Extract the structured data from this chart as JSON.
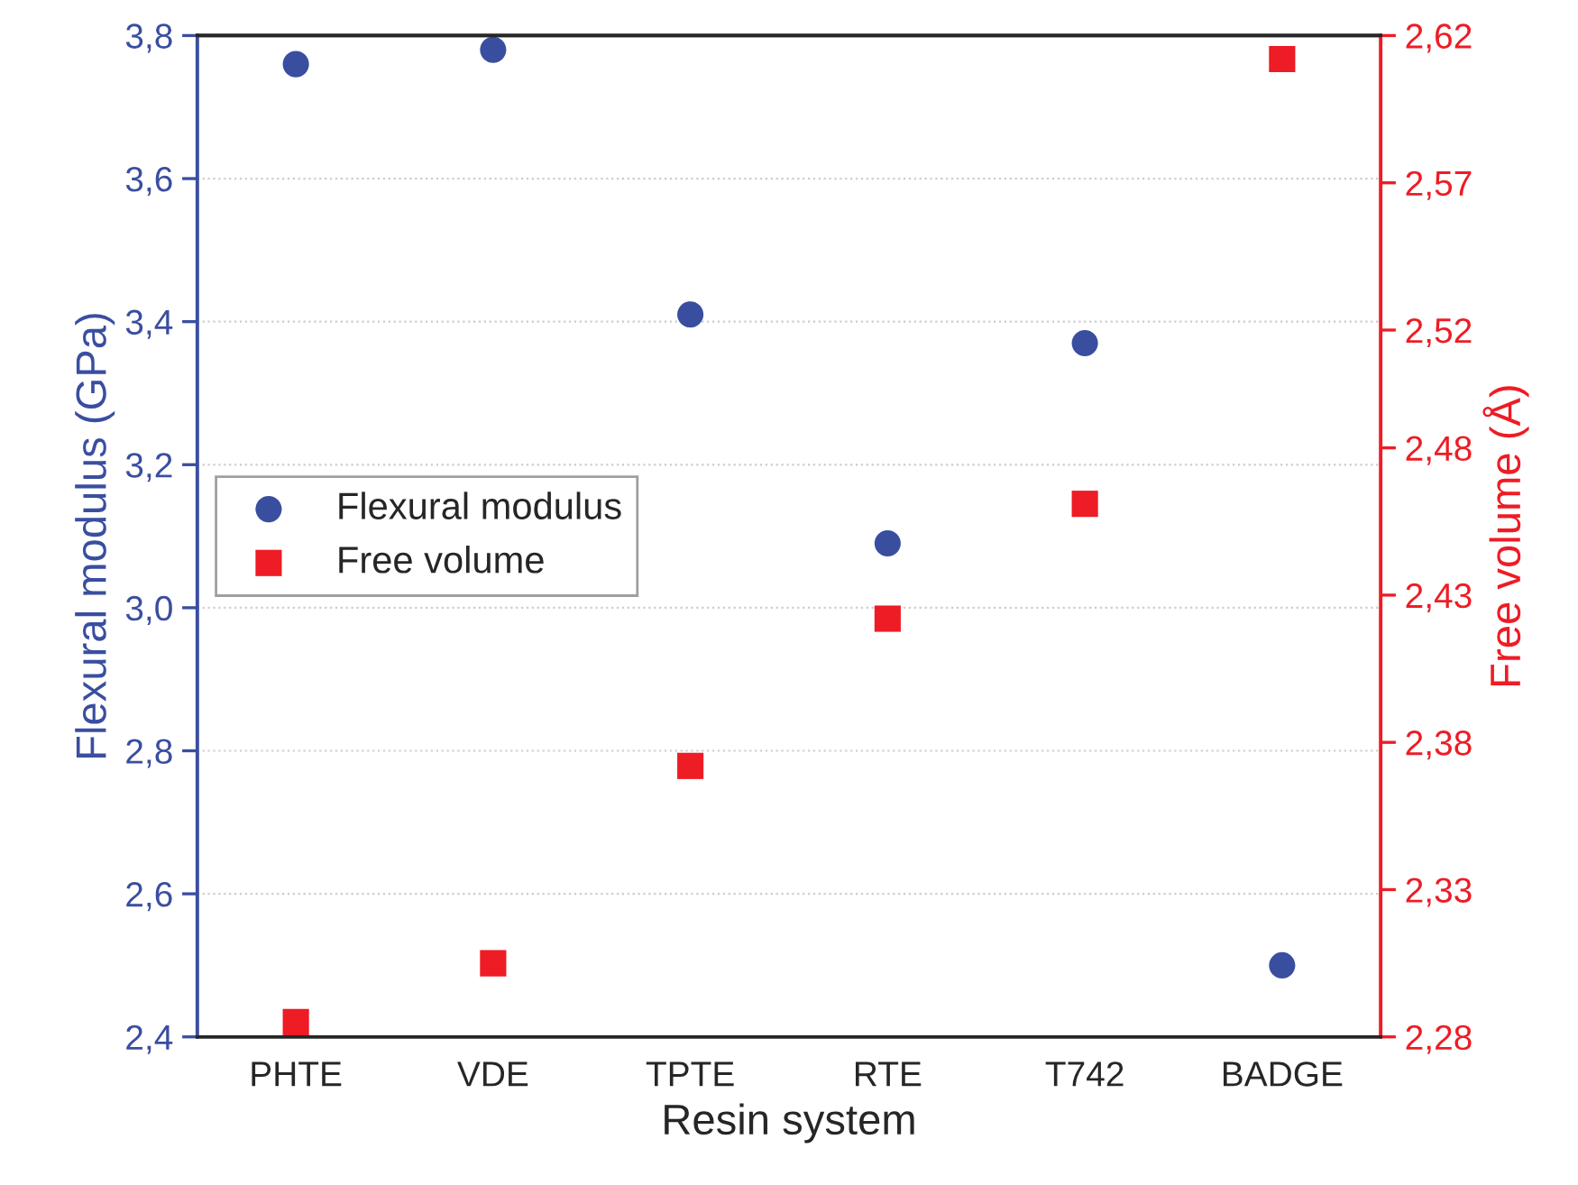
{
  "chart_data": {
    "type": "scatter",
    "xlabel": "Resin system",
    "ylabel": "Flexural modulus (GPa)",
    "y2label": "Free volume (Å)",
    "categories": [
      "PHTE",
      "VDE",
      "TPTE",
      "RTE",
      "T742",
      "BADGE"
    ],
    "series": [
      {
        "name": "Flexural modulus",
        "color": "#3a4ea0",
        "marker": "circle",
        "values": [
          3.76,
          3.78,
          3.41,
          3.09,
          3.37,
          2.5
        ]
      },
      {
        "name": "Free volume",
        "color": "#ee1c25",
        "marker": "square",
        "axis": "y2",
        "values": [
          2.285,
          2.305,
          2.372,
          2.422,
          2.461,
          2.612
        ]
      }
    ],
    "ylim": [
      2.4,
      3.8
    ],
    "yticks": [
      {
        "value": 2.4,
        "label": "2,4"
      },
      {
        "value": 2.6,
        "label": "2,6"
      },
      {
        "value": 2.8,
        "label": "2,8"
      },
      {
        "value": 3.0,
        "label": "3,0"
      },
      {
        "value": 3.2,
        "label": "3,2"
      },
      {
        "value": 3.4,
        "label": "3,4"
      },
      {
        "value": 3.6,
        "label": "3,6"
      },
      {
        "value": 3.8,
        "label": "3,8"
      }
    ],
    "y2lim": [
      2.28,
      2.62
    ],
    "y2ticks": [
      {
        "value": 2.28,
        "label": "2,28"
      },
      {
        "value": 2.33,
        "label": "2,33"
      },
      {
        "value": 2.38,
        "label": "2,38"
      },
      {
        "value": 2.43,
        "label": "2,43"
      },
      {
        "value": 2.48,
        "label": "2,48"
      },
      {
        "value": 2.52,
        "label": "2,52"
      },
      {
        "value": 2.57,
        "label": "2,57"
      },
      {
        "value": 2.62,
        "label": "2,62"
      }
    ],
    "grid": "y",
    "legend": "center left"
  }
}
